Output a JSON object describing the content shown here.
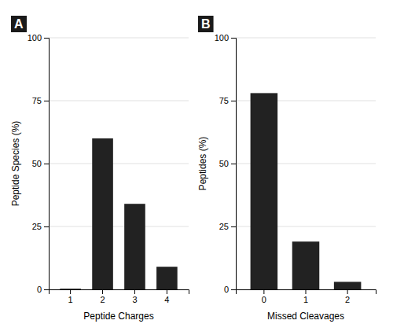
{
  "chart_data": [
    {
      "type": "bar",
      "title": "A",
      "categories": [
        "1",
        "2",
        "3",
        "4"
      ],
      "values": [
        0.3,
        60,
        34,
        9
      ],
      "xlabel": "Peptide Charges",
      "ylabel": "Peptide Species (%)",
      "color": "#222222",
      "ylim": [
        0,
        100
      ],
      "yticks": [
        0,
        25,
        50,
        75,
        100
      ],
      "grid": true
    },
    {
      "type": "bar",
      "title": "B",
      "categories": [
        "0",
        "1",
        "2"
      ],
      "values": [
        78,
        19,
        3
      ],
      "xlabel": "Missed Cleavages",
      "ylabel": "Peptides (%)",
      "color": "#222222",
      "ylim": [
        0,
        100
      ],
      "yticks": [
        0,
        25,
        50,
        75,
        100
      ],
      "grid": true
    }
  ]
}
